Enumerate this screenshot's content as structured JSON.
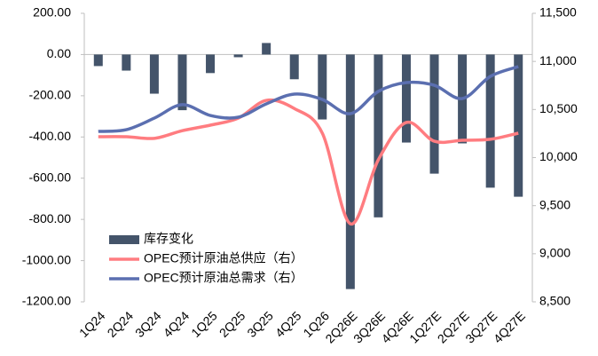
{
  "chart_data": {
    "type": "bar",
    "categories": [
      "1Q24",
      "2Q24",
      "3Q24",
      "4Q24",
      "1Q25",
      "2Q25",
      "3Q25",
      "4Q25",
      "1Q26",
      "2Q26E",
      "3Q26E",
      "4Q26E",
      "1Q27E",
      "2Q27E",
      "3Q27E",
      "4Q27E"
    ],
    "series": [
      {
        "name": "库存变化",
        "type": "bar",
        "color": "#44546a",
        "values": [
          -56,
          -78,
          -190,
          -270,
          -90,
          -13,
          56,
          -120,
          -315,
          -1138,
          -790,
          -427,
          -578,
          -431,
          -646,
          -690
        ]
      },
      {
        "name": "OPEC预计原油总供应（右）",
        "type": "line",
        "axis": "y2",
        "color": "#ff7c80",
        "values": [
          10217,
          10217,
          10200,
          10280,
          10337,
          10410,
          10595,
          10510,
          10254,
          9312,
          9977,
          10365,
          10170,
          10180,
          10190,
          10254
        ]
      },
      {
        "name": "OPEC预计原油总需求（右）",
        "type": "line",
        "axis": "y2",
        "color": "#5b6fb0",
        "values": [
          10272,
          10290,
          10410,
          10550,
          10438,
          10420,
          10558,
          10660,
          10604,
          10457,
          10688,
          10780,
          10752,
          10614,
          10844,
          10946
        ]
      }
    ],
    "ylim": [
      -1200,
      200
    ],
    "yticks": [
      {
        "value": 200,
        "label": "200.00"
      },
      {
        "value": 0,
        "label": "0.00"
      },
      {
        "value": -200,
        "label": "-200.00"
      },
      {
        "value": -400,
        "label": "-400.00"
      },
      {
        "value": -600,
        "label": "-600.00"
      },
      {
        "value": -800,
        "label": "-800.00"
      },
      {
        "value": -1000,
        "label": "-1000.00"
      },
      {
        "value": -1200,
        "label": "-1200.00"
      }
    ],
    "y2lim": [
      8500,
      11500
    ],
    "y2ticks": [
      {
        "value": 11500,
        "label": "11,500"
      },
      {
        "value": 11000,
        "label": "11,000"
      },
      {
        "value": 10500,
        "label": "10,500"
      },
      {
        "value": 10000,
        "label": "10,000"
      },
      {
        "value": 9500,
        "label": "9,500"
      },
      {
        "value": 9000,
        "label": "9,000"
      },
      {
        "value": 8500,
        "label": "8,500"
      }
    ],
    "legend": "lower-left"
  }
}
